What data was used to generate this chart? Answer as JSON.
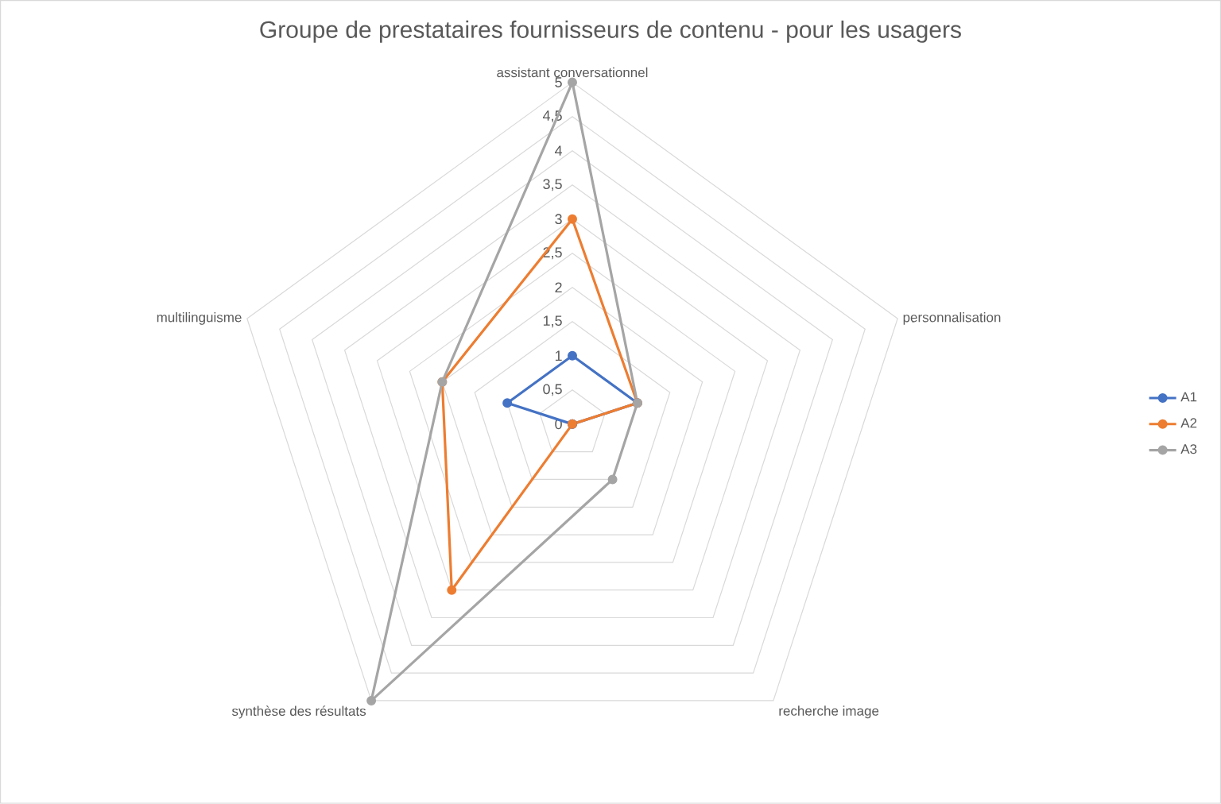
{
  "chart_data": {
    "type": "radar",
    "title": "Groupe de prestataires fournisseurs de contenu - pour les usagers",
    "categories": [
      "assistant conversationnel",
      "personnalisation",
      "recherche image",
      "synthèse des résultats",
      "multilinguisme"
    ],
    "series": [
      {
        "name": "A1",
        "color": "#4472c4",
        "values": [
          1,
          1,
          0,
          0,
          1
        ]
      },
      {
        "name": "A2",
        "color": "#ed7d31",
        "values": [
          3,
          1,
          0,
          3,
          2
        ]
      },
      {
        "name": "A3",
        "color": "#a5a5a5",
        "values": [
          5,
          1,
          1,
          5,
          2
        ]
      }
    ],
    "ylim": [
      0,
      5
    ],
    "yticks": [
      0,
      {
        "value": 0.5,
        "label": "0,5"
      },
      1,
      {
        "value": 1.5,
        "label": "1,5"
      },
      2,
      {
        "value": 2.5,
        "label": "2,5"
      },
      3,
      {
        "value": 3.5,
        "label": "3,5"
      },
      4,
      {
        "value": 4.5,
        "label": "4,5"
      },
      5
    ],
    "grid": true,
    "legend": "right",
    "marker": "circle",
    "line_style": "solid"
  }
}
